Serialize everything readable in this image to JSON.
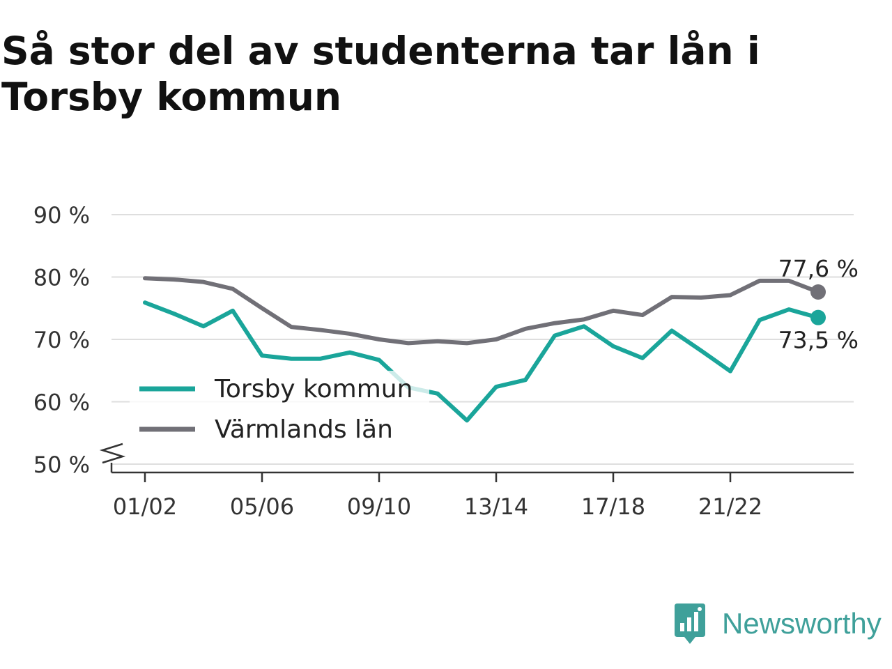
{
  "title": "Så stor del av studenterna tar lån i Torsby kommun",
  "brand": {
    "name": "Newsworthy",
    "icon": "newsworthy-logo-icon",
    "color": "#3fa09a"
  },
  "chart_data": {
    "type": "line",
    "categories": [
      "01/02",
      "02/03",
      "03/04",
      "04/05",
      "05/06",
      "06/07",
      "07/08",
      "08/09",
      "09/10",
      "10/11",
      "11/12",
      "12/13",
      "13/14",
      "14/15",
      "15/16",
      "16/17",
      "17/18",
      "18/19",
      "19/20",
      "20/21",
      "21/22",
      "22/23",
      "23/24",
      "24/25"
    ],
    "x_tick_labels": [
      "01/02",
      "05/06",
      "09/10",
      "13/14",
      "17/18",
      "21/22"
    ],
    "y_ticks": [
      50,
      60,
      70,
      80,
      90
    ],
    "y_tick_labels": [
      "50 %",
      "60 %",
      "70 %",
      "80 %",
      "90 %"
    ],
    "ylim": [
      50,
      90
    ],
    "y_axis_break": true,
    "grid": true,
    "legend_position": "lower-left",
    "series": [
      {
        "name": "Torsby kommun",
        "color": "#1aa59a",
        "values": [
          75.9,
          74.1,
          72.1,
          74.6,
          67.4,
          66.9,
          66.9,
          67.9,
          66.7,
          62.3,
          61.3,
          57.0,
          62.4,
          63.5,
          70.6,
          72.1,
          68.9,
          67.0,
          71.4,
          68.2,
          64.9,
          73.1,
          74.8,
          73.5
        ],
        "end_label": "73,5 %"
      },
      {
        "name": "Värmlands län",
        "color": "#717077",
        "values": [
          79.8,
          79.6,
          79.2,
          78.1,
          75.0,
          72.0,
          71.5,
          70.9,
          70.0,
          69.4,
          69.7,
          69.4,
          70.0,
          71.7,
          72.6,
          73.2,
          74.6,
          73.9,
          76.8,
          76.7,
          77.1,
          79.4,
          79.4,
          77.6
        ],
        "end_label": "77,6 %"
      }
    ]
  }
}
